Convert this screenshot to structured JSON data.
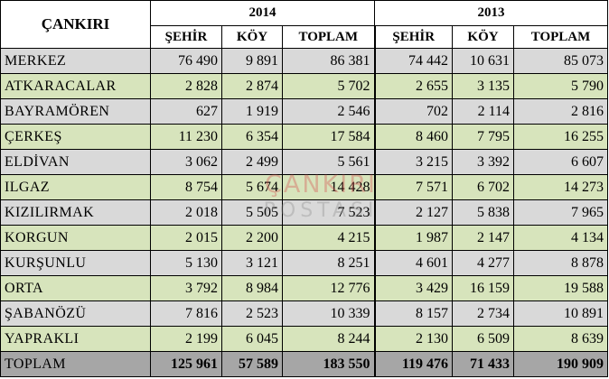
{
  "header": {
    "corner": "ÇANKIRI",
    "years": [
      "2014",
      "2013"
    ],
    "sub": [
      "ŞEHİR",
      "KÖY",
      "TOPLAM"
    ]
  },
  "rows": [
    {
      "name": "MERKEZ",
      "v": [
        "76 490",
        "9 891",
        "86 381",
        "74 442",
        "10 631",
        "85 073"
      ]
    },
    {
      "name": "ATKARACALAR",
      "v": [
        "2 828",
        "2 874",
        "5 702",
        "2 655",
        "3 135",
        "5 790"
      ]
    },
    {
      "name": "BAYRAMÖREN",
      "v": [
        "627",
        "1 919",
        "2 546",
        "702",
        "2 114",
        "2 816"
      ]
    },
    {
      "name": "ÇERKEŞ",
      "v": [
        "11 230",
        "6 354",
        "17 584",
        "8 460",
        "7 795",
        "16 255"
      ]
    },
    {
      "name": "ELDİVAN",
      "v": [
        "3 062",
        "2 499",
        "5 561",
        "3 215",
        "3 392",
        "6 607"
      ]
    },
    {
      "name": "ILGAZ",
      "v": [
        "8 754",
        "5 674",
        "14 428",
        "7 571",
        "6 702",
        "14 273"
      ]
    },
    {
      "name": "KIZILIRMAK",
      "v": [
        "2 018",
        "5 505",
        "7 523",
        "2 127",
        "5 838",
        "7 965"
      ]
    },
    {
      "name": "KORGUN",
      "v": [
        "2 015",
        "2 200",
        "4 215",
        "1 987",
        "2 147",
        "4 134"
      ]
    },
    {
      "name": "KURŞUNLU",
      "v": [
        "5 130",
        "3 121",
        "8 251",
        "4 601",
        "4 277",
        "8 878"
      ]
    },
    {
      "name": "ORTA",
      "v": [
        "3 792",
        "8 984",
        "12 776",
        "3 429",
        "16 159",
        "19 588"
      ]
    },
    {
      "name": "ŞABANÖZÜ",
      "v": [
        "7 816",
        "2 523",
        "10 339",
        "8 157",
        "2 734",
        "10 891"
      ]
    },
    {
      "name": "YAPRAKLI",
      "v": [
        "2 199",
        "6 045",
        "8 244",
        "2 130",
        "6 509",
        "8 639"
      ]
    }
  ],
  "total": {
    "name": "TOPLAM",
    "v": [
      "125 961",
      "57 589",
      "183 550",
      "119 476",
      "71 433",
      "190 909"
    ]
  },
  "watermark": {
    "line1": "ÇANKIRI",
    "line2": "POSTASI"
  },
  "colors": {
    "gray_row": "#d9d9d9",
    "green_row": "#d7e4bc",
    "total_row": "#a6a6a6"
  }
}
